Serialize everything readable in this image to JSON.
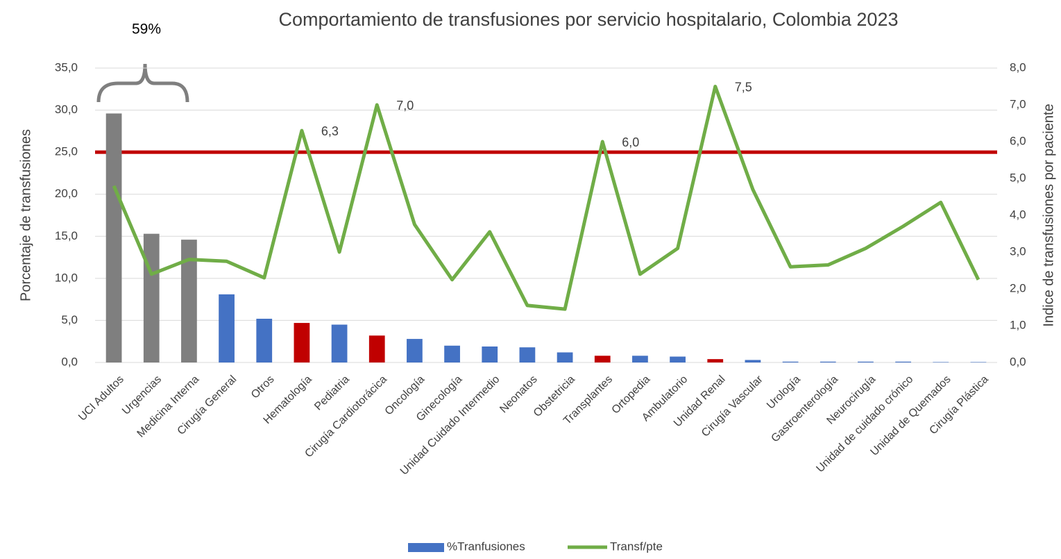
{
  "chart_data": {
    "type": "bar_line",
    "title": "Comportamiento de transfusiones por servicio hospitalario, Colombia 2023",
    "annotation": "59%",
    "y_label": "Porcentaje de transfusiones",
    "y2_label": "Indice de transfusiones por paciente",
    "categories": [
      "UCI Adultos",
      "Urgencias",
      "Medicina Interna",
      "Cirugía General",
      "Otros",
      "Hematología",
      "Pediatria",
      "Cirugía Cardiotorácica",
      "Oncología",
      "Ginecología",
      "Unidad Cuidado Intermedio",
      "Neonatos",
      "Obstetricia",
      "Transplantes",
      "Ortopedia",
      "Ambulatorio",
      "Unidad Renal",
      "Cirugía Vascular",
      "Urología",
      "Gastroenterología",
      "Neurocirugía",
      "Unidad de cuidado crónico",
      "Unidad de Quemados",
      "Cirugía Plástica"
    ],
    "series": [
      {
        "name": "%Tranfusiones",
        "type": "bar",
        "color": "#4472c4",
        "colors": [
          "#7f7f7f",
          "#7f7f7f",
          "#7f7f7f",
          "#4472c4",
          "#4472c4",
          "#c00000",
          "#4472c4",
          "#c00000",
          "#4472c4",
          "#4472c4",
          "#4472c4",
          "#4472c4",
          "#4472c4",
          "#c00000",
          "#4472c4",
          "#4472c4",
          "#c00000",
          "#4472c4",
          "#4472c4",
          "#4472c4",
          "#4472c4",
          "#4472c4",
          "#4472c4",
          "#4472c4"
        ],
        "values": [
          29.6,
          15.3,
          14.6,
          8.1,
          5.2,
          4.7,
          4.5,
          3.2,
          2.8,
          2.0,
          1.9,
          1.8,
          1.2,
          0.8,
          0.8,
          0.7,
          0.4,
          0.3,
          0.1,
          0.1,
          0.1,
          0.1,
          0.05,
          0.05
        ]
      },
      {
        "name": "Transf/pte",
        "type": "line",
        "axis": "y2",
        "color": "#70ad47",
        "values": [
          4.8,
          2.4,
          2.8,
          2.75,
          2.3,
          6.3,
          3.0,
          7.0,
          3.75,
          2.25,
          3.55,
          1.55,
          1.45,
          6.0,
          2.4,
          3.1,
          7.5,
          4.7,
          2.6,
          2.65,
          3.1,
          3.7,
          4.35,
          2.25
        ],
        "value_labels": [
          null,
          null,
          null,
          null,
          null,
          "6,3",
          null,
          "7,0",
          null,
          null,
          null,
          null,
          null,
          "6,0",
          null,
          null,
          "7,5",
          null,
          null,
          null,
          null,
          null,
          null,
          null
        ]
      }
    ],
    "reference_line": {
      "value": 25,
      "color": "#c00000"
    },
    "ylim": [
      0,
      35
    ],
    "yticks": [
      {
        "value": 0,
        "label": "0,0"
      },
      {
        "value": 5,
        "label": "5,0"
      },
      {
        "value": 10,
        "label": "10,0"
      },
      {
        "value": 15,
        "label": "15,0"
      },
      {
        "value": 20,
        "label": "20,0"
      },
      {
        "value": 25,
        "label": "25,0"
      },
      {
        "value": 30,
        "label": "30,0"
      },
      {
        "value": 35,
        "label": "35,0"
      }
    ],
    "y2lim": [
      0,
      8
    ],
    "y2ticks": [
      {
        "value": 0,
        "label": "0,0"
      },
      {
        "value": 1,
        "label": "1,0"
      },
      {
        "value": 2,
        "label": "2,0"
      },
      {
        "value": 3,
        "label": "3,0"
      },
      {
        "value": 4,
        "label": "4,0"
      },
      {
        "value": 5,
        "label": "5,0"
      },
      {
        "value": 6,
        "label": "6,0"
      },
      {
        "value": 7,
        "label": "7,0"
      },
      {
        "value": 8,
        "label": "8,0"
      }
    ],
    "grid": true,
    "legend": "bottom"
  }
}
